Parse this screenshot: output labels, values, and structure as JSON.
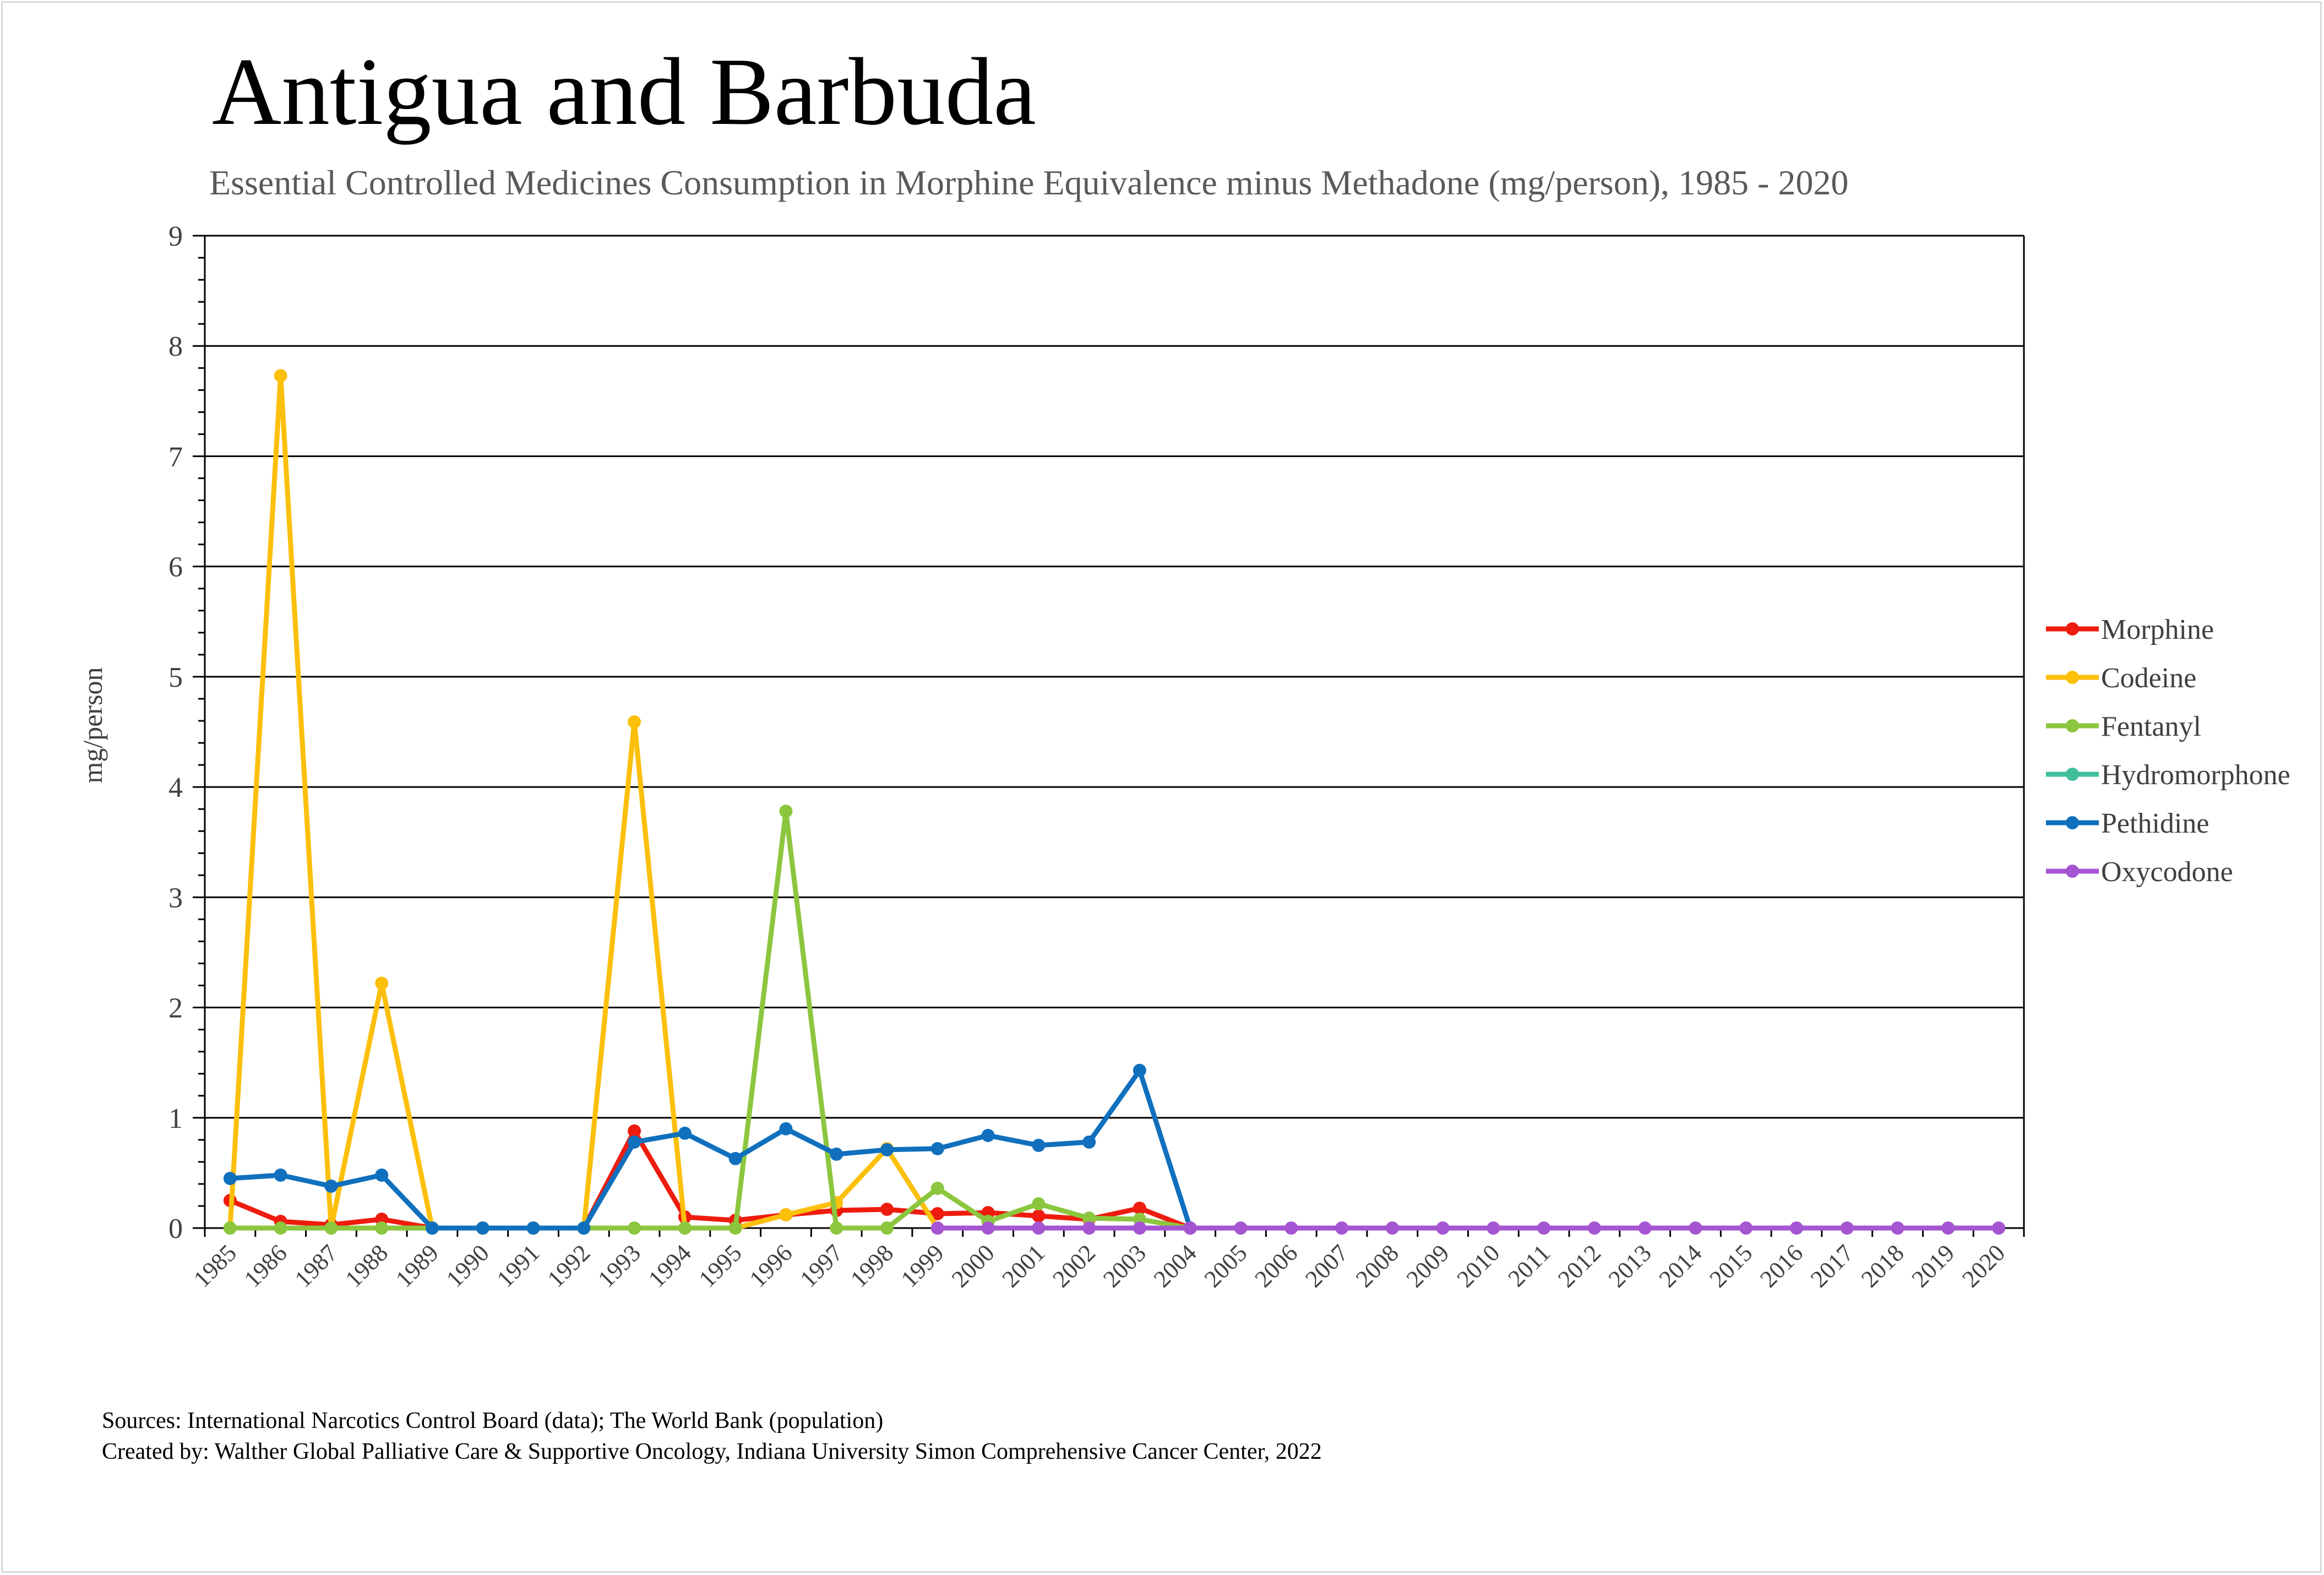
{
  "chart_data": {
    "type": "line",
    "title": "Antigua and Barbuda",
    "subtitle": "Essential Controlled Medicines Consumption in Morphine Equivalence minus Methadone (mg/person), 1985 - 2020",
    "xlabel": "",
    "ylabel": "mg/person",
    "ylim": [
      0,
      9
    ],
    "yticks": [
      0,
      1,
      2,
      3,
      4,
      5,
      6,
      7,
      8,
      9
    ],
    "grid": true,
    "legend": "right",
    "x": [
      "1985",
      "1986",
      "1987",
      "1988",
      "1989",
      "1990",
      "1991",
      "1992",
      "1993",
      "1994",
      "1995",
      "1996",
      "1997",
      "1998",
      "1999",
      "2000",
      "2001",
      "2002",
      "2003",
      "2004",
      "2005",
      "2006",
      "2007",
      "2008",
      "2009",
      "2010",
      "2011",
      "2012",
      "2013",
      "2014",
      "2015",
      "2016",
      "2017",
      "2018",
      "2019",
      "2020"
    ],
    "series": [
      {
        "name": "Morphine",
        "color": "#ee1c0e",
        "values": [
          0.25,
          0.06,
          0.03,
          0.08,
          0,
          0,
          0,
          0,
          0.88,
          0.1,
          0.07,
          0.12,
          0.16,
          0.17,
          0.13,
          0.14,
          0.11,
          0.08,
          0.18,
          0,
          null,
          null,
          null,
          null,
          null,
          null,
          null,
          null,
          null,
          null,
          null,
          null,
          null,
          null,
          null,
          null
        ]
      },
      {
        "name": "Codeine",
        "color": "#fcbf0a",
        "values": [
          0,
          7.73,
          0,
          2.22,
          0,
          0,
          0,
          0,
          4.59,
          0,
          0,
          0.12,
          0.23,
          0.72,
          0,
          null,
          null,
          null,
          null,
          null,
          null,
          null,
          null,
          null,
          null,
          null,
          null,
          null,
          null,
          null,
          null,
          null,
          null,
          null,
          null,
          null
        ]
      },
      {
        "name": "Fentanyl",
        "color": "#8cc63e",
        "values": [
          0,
          0,
          0,
          0,
          0,
          0,
          0,
          0,
          0,
          0,
          0,
          3.78,
          0,
          0,
          0.36,
          0.06,
          0.22,
          0.09,
          0.08,
          0,
          null,
          null,
          null,
          null,
          null,
          null,
          null,
          null,
          null,
          null,
          null,
          null,
          null,
          null,
          null,
          null
        ]
      },
      {
        "name": "Hydromorphone",
        "color": "#3fbf9b",
        "values": [
          null,
          null,
          null,
          null,
          null,
          null,
          null,
          null,
          null,
          null,
          null,
          null,
          null,
          null,
          null,
          null,
          null,
          null,
          null,
          null,
          null,
          null,
          null,
          null,
          null,
          null,
          null,
          null,
          null,
          null,
          null,
          null,
          null,
          null,
          null,
          null
        ]
      },
      {
        "name": "Pethidine",
        "color": "#1070bd",
        "values": [
          0.45,
          0.48,
          0.38,
          0.48,
          0,
          0,
          0,
          0,
          0.78,
          0.86,
          0.63,
          0.9,
          0.67,
          0.71,
          0.72,
          0.84,
          0.75,
          0.78,
          1.43,
          0,
          null,
          null,
          null,
          null,
          null,
          null,
          null,
          null,
          null,
          null,
          null,
          null,
          null,
          null,
          null,
          null
        ]
      },
      {
        "name": "Oxycodone",
        "color": "#a555d1",
        "values": [
          null,
          null,
          null,
          null,
          null,
          null,
          null,
          null,
          null,
          null,
          null,
          null,
          null,
          null,
          0,
          0,
          0,
          0,
          0,
          0,
          0,
          0,
          0,
          0,
          0,
          0,
          0,
          0,
          0,
          0,
          0,
          0,
          0,
          0,
          0,
          0
        ]
      }
    ]
  },
  "footer": {
    "sources": "Sources: International Narcotics Control Board (data); The World Bank (population)",
    "created_by": "Created by: Walther Global Palliative Care & Supportive Oncology, Indiana University Simon Comprehensive Cancer Center, 2022"
  }
}
